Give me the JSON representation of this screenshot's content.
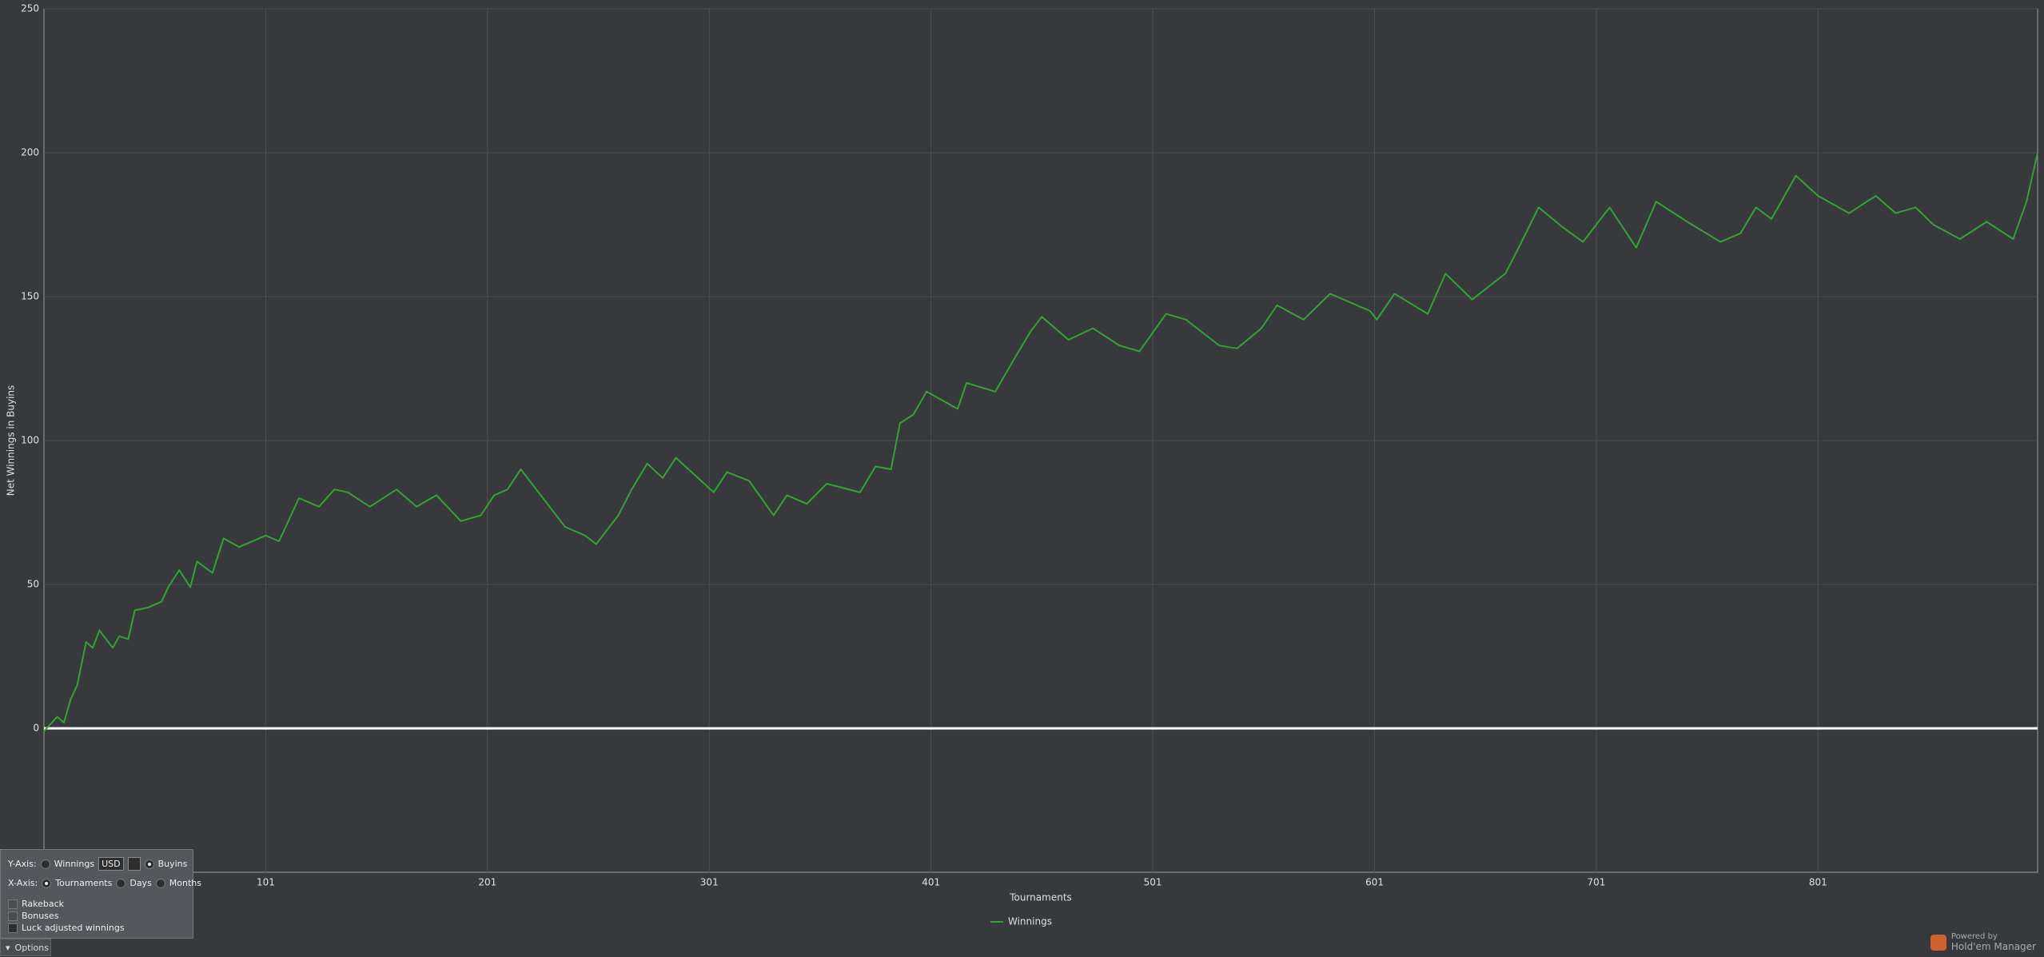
{
  "chart_data": {
    "type": "line",
    "x_label": "Tournaments",
    "y_label": "Net Winnings in Buyins",
    "x": [
      1,
      7,
      10,
      13,
      16,
      20,
      23,
      26,
      32,
      35,
      39,
      42,
      48,
      54,
      57,
      62,
      67,
      70,
      77,
      82,
      89,
      101,
      107,
      116,
      125,
      132,
      138,
      148,
      160,
      169,
      178,
      189,
      198,
      204,
      210,
      216,
      236,
      245,
      250,
      260,
      266,
      273,
      280,
      286,
      303,
      309,
      319,
      330,
      336,
      345,
      354,
      369,
      376,
      383,
      387,
      393,
      399,
      413,
      417,
      430,
      439,
      446,
      451,
      463,
      474,
      486,
      495,
      507,
      516,
      531,
      539,
      550,
      557,
      569,
      581,
      599,
      602,
      610,
      625,
      633,
      645,
      660,
      666,
      675,
      686,
      695,
      707,
      719,
      728,
      742,
      757,
      766,
      773,
      780,
      791,
      801,
      815,
      827,
      836,
      845,
      853,
      865,
      877,
      889,
      895,
      900
    ],
    "series": [
      {
        "name": "Winnings",
        "color": "#33a333",
        "values": [
          -1,
          4,
          2,
          10,
          15,
          30,
          28,
          34,
          28,
          32,
          31,
          41,
          42,
          44,
          49,
          55,
          49,
          58,
          54,
          66,
          63,
          67,
          65,
          80,
          77,
          83,
          82,
          77,
          83,
          77,
          81,
          72,
          74,
          81,
          83,
          90,
          70,
          67,
          64,
          74,
          83,
          92,
          87,
          94,
          82,
          89,
          86,
          74,
          81,
          78,
          85,
          82,
          91,
          90,
          106,
          109,
          117,
          111,
          120,
          117,
          129,
          138,
          143,
          135,
          139,
          133,
          131,
          144,
          142,
          133,
          132,
          139,
          147,
          142,
          151,
          145,
          142,
          151,
          144,
          158,
          149,
          158,
          167,
          181,
          174,
          169,
          181,
          167,
          183,
          176,
          169,
          172,
          181,
          177,
          192,
          185,
          179,
          185,
          179,
          181,
          175,
          170,
          176,
          170,
          183,
          200
        ]
      }
    ],
    "xlim": [
      1,
      900
    ],
    "ylim": [
      -50,
      250
    ],
    "xticks": [
      101,
      201,
      301,
      401,
      501,
      601,
      701,
      801
    ],
    "yticks": [
      0,
      50,
      100,
      150,
      200,
      250
    ],
    "grid": true
  },
  "ui": {
    "y_axis": "Y-Axis:",
    "winnings": "Winnings",
    "currency": "USD",
    "buyins": "Buyins",
    "x_axis": "X-Axis:",
    "tournaments": "Tournaments",
    "days": "Days",
    "months": "Months",
    "rakeback": "Rakeback",
    "bonuses": "Bonuses",
    "luck": "Luck adjusted winnings",
    "options": "Options",
    "powered": "Powered by",
    "brand": "Hold'em Manager"
  }
}
